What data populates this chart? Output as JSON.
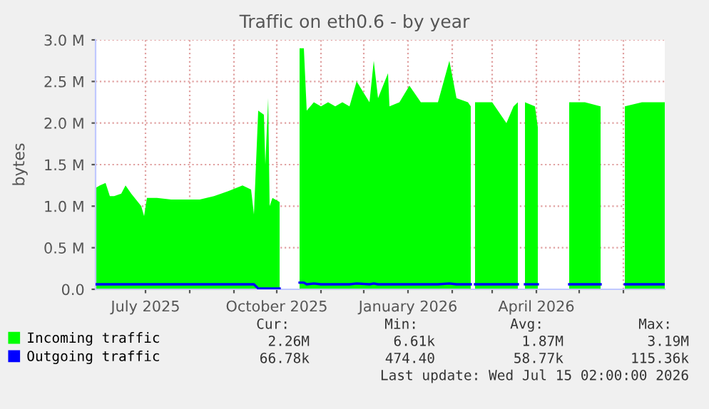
{
  "chart_data": {
    "type": "area",
    "title": "Traffic on eth0.6 - by year",
    "ylabel": "bytes",
    "x": [
      "2025-05-27",
      "2025-05-30",
      "2025-06-03",
      "2025-06-06",
      "2025-06-09",
      "2025-06-14",
      "2025-06-17",
      "2025-06-21",
      "2025-06-28",
      "2025-06-30",
      "2025-07-02",
      "2025-07-09",
      "2025-07-19",
      "2025-07-29",
      "2025-08-08",
      "2025-08-18",
      "2025-08-28",
      "2025-09-07",
      "2025-09-13",
      "2025-09-15",
      "2025-09-18",
      "2025-09-22",
      "2025-09-23",
      "2025-09-25",
      "2025-09-26",
      "2025-09-28",
      "2025-10-03",
      "2025-10-10",
      "2025-10-17",
      "2025-10-20",
      "2025-10-22",
      "2025-10-27",
      "2025-11-01",
      "2025-11-06",
      "2025-11-11",
      "2025-11-16",
      "2025-11-21",
      "2025-11-26",
      "2025-12-05",
      "2025-12-08",
      "2025-12-11",
      "2025-12-18",
      "2025-12-19",
      "2025-12-26",
      "2026-01-02",
      "2026-01-10",
      "2026-01-22",
      "2026-01-30",
      "2026-02-04",
      "2026-02-12",
      "2026-02-14",
      "2026-02-15",
      "2026-02-17",
      "2026-03-01",
      "2026-03-11",
      "2026-03-16",
      "2026-03-19",
      "2026-03-21",
      "2026-03-24",
      "2026-03-31",
      "2026-04-02",
      "2026-04-10",
      "2026-04-24",
      "2026-05-05",
      "2026-05-16",
      "2026-05-25",
      "2026-06-02",
      "2026-06-14",
      "2026-06-30"
    ],
    "series": [
      {
        "name": "Incoming traffic",
        "color": "#00ff00",
        "values": [
          1220000,
          1250000,
          1280000,
          1120000,
          1120000,
          1150000,
          1250000,
          1150000,
          1000000,
          880000,
          1100000,
          1100000,
          1080000,
          1080000,
          1080000,
          1120000,
          1180000,
          1250000,
          1200000,
          900000,
          2150000,
          2100000,
          1500000,
          2300000,
          1000000,
          1100000,
          1050000,
          null,
          2900000,
          2900000,
          2150000,
          2250000,
          2200000,
          2250000,
          2200000,
          2250000,
          2200000,
          2500000,
          2250000,
          2750000,
          2300000,
          2600000,
          2200000,
          2250000,
          2450000,
          2250000,
          2250000,
          2750000,
          2300000,
          2250000,
          2200000,
          null,
          2250000,
          2250000,
          2000000,
          2200000,
          2250000,
          null,
          2250000,
          2200000,
          1950000,
          null,
          2250000,
          2250000,
          2200000,
          null,
          2200000,
          2250000,
          2250000
        ]
      },
      {
        "name": "Outgoing traffic",
        "color": "#0000ff",
        "type": "line",
        "values": [
          60000,
          60000,
          60000,
          60000,
          60000,
          60000,
          60000,
          60000,
          60000,
          60000,
          60000,
          60000,
          60000,
          60000,
          60000,
          60000,
          60000,
          60000,
          60000,
          60000,
          10000,
          10000,
          10000,
          10000,
          10000,
          10000,
          10000,
          null,
          80000,
          80000,
          60000,
          70000,
          60000,
          60000,
          60000,
          60000,
          60000,
          70000,
          60000,
          70000,
          60000,
          60000,
          60000,
          60000,
          60000,
          60000,
          60000,
          70000,
          60000,
          60000,
          60000,
          null,
          60000,
          60000,
          60000,
          60000,
          60000,
          null,
          60000,
          60000,
          60000,
          null,
          60000,
          60000,
          60000,
          null,
          60000,
          60000,
          60000
        ]
      }
    ],
    "xlim": [
      "2025-05-27",
      "2026-06-30"
    ],
    "xticks": [
      {
        "value": "2025-07-01",
        "label": "July 2025"
      },
      {
        "value": "2025-08-01",
        "label": null
      },
      {
        "value": "2025-09-01",
        "label": null
      },
      {
        "value": "2025-10-01",
        "label": "October 2025"
      },
      {
        "value": "2025-11-01",
        "label": null
      },
      {
        "value": "2025-12-01",
        "label": null
      },
      {
        "value": "2026-01-01",
        "label": "January 2026"
      },
      {
        "value": "2026-02-01",
        "label": null
      },
      {
        "value": "2026-03-01",
        "label": null
      },
      {
        "value": "2026-04-01",
        "label": "April 2026"
      },
      {
        "value": "2026-05-01",
        "label": null
      },
      {
        "value": "2026-06-01",
        "label": null
      }
    ],
    "ylim": [
      0,
      3000000
    ],
    "yticks": [
      {
        "value": 0,
        "label": "0.0"
      },
      {
        "value": 500000,
        "label": "0.5 M"
      },
      {
        "value": 1000000,
        "label": "1.0 M"
      },
      {
        "value": 1500000,
        "label": "1.5 M"
      },
      {
        "value": 2000000,
        "label": "2.0 M"
      },
      {
        "value": 2500000,
        "label": "2.5 M"
      },
      {
        "value": 3000000,
        "label": "3.0 M"
      }
    ],
    "grid": true,
    "legend": "bottom",
    "annotations": [
      "Cur:",
      "Min:",
      "Avg:",
      "Max:",
      "2.26M",
      "6.61k",
      "1.87M",
      "3.19M",
      "66.78k",
      "474.40",
      "58.77k",
      "115.36k",
      "Last update: Wed Jul 15 02:00:00 2026"
    ]
  }
}
